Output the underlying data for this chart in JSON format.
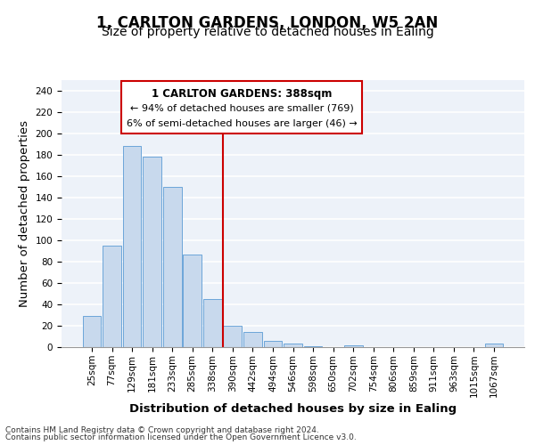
{
  "title": "1, CARLTON GARDENS, LONDON, W5 2AN",
  "subtitle": "Size of property relative to detached houses in Ealing",
  "xlabel": "Distribution of detached houses by size in Ealing",
  "ylabel": "Number of detached properties",
  "bar_color": "#c8d9ed",
  "bar_edge_color": "#5b9bd5",
  "categories": [
    "25sqm",
    "77sqm",
    "129sqm",
    "181sqm",
    "233sqm",
    "285sqm",
    "338sqm",
    "390sqm",
    "442sqm",
    "494sqm",
    "546sqm",
    "598sqm",
    "650sqm",
    "702sqm",
    "754sqm",
    "806sqm",
    "859sqm",
    "911sqm",
    "963sqm",
    "1015sqm",
    "1067sqm"
  ],
  "values": [
    29,
    95,
    188,
    178,
    150,
    87,
    45,
    20,
    14,
    6,
    3,
    1,
    0,
    2,
    0,
    0,
    0,
    0,
    0,
    0,
    3
  ],
  "ylim": [
    0,
    250
  ],
  "yticks": [
    0,
    20,
    40,
    60,
    80,
    100,
    120,
    140,
    160,
    180,
    200,
    220,
    240
  ],
  "vline_index": 7,
  "annotation_title": "1 CARLTON GARDENS: 388sqm",
  "annotation_line1": "← 94% of detached houses are smaller (769)",
  "annotation_line2": "6% of semi-detached houses are larger (46) →",
  "annotation_box_color": "#cc0000",
  "footer_line1": "Contains HM Land Registry data © Crown copyright and database right 2024.",
  "footer_line2": "Contains public sector information licensed under the Open Government Licence v3.0.",
  "background_color": "#edf2f9",
  "grid_color": "#ffffff",
  "title_fontsize": 12,
  "subtitle_fontsize": 10,
  "axis_label_fontsize": 9.5,
  "tick_fontsize": 7.5,
  "footer_fontsize": 6.5
}
